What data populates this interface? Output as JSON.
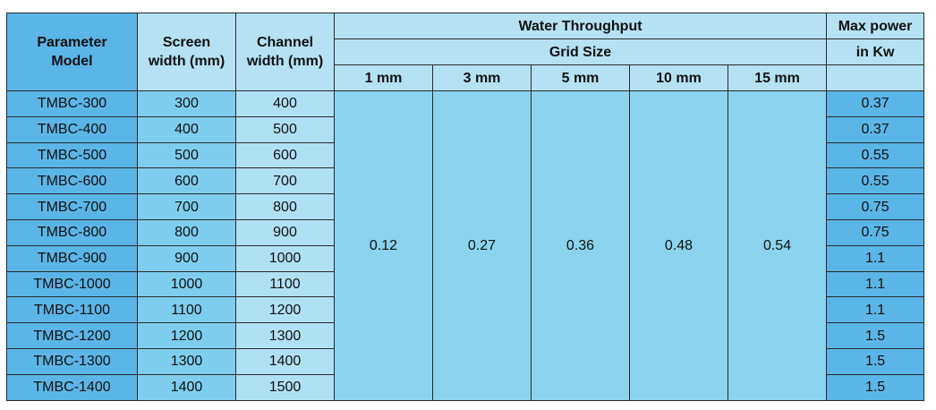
{
  "table": {
    "headers": {
      "model": "Parameter\nModel",
      "screen": "Screen\nwidth (mm)",
      "channel": "Channel\nwidth (mm)",
      "throughput": "Water Throughput",
      "grid": "Grid Size",
      "grid_sizes": [
        "1 mm",
        "3 mm",
        "5 mm",
        "10 mm",
        "15 mm"
      ],
      "power": "Max power",
      "power_unit": "in Kw"
    },
    "throughput_values": [
      0.12,
      0.27,
      0.36,
      0.48,
      0.54
    ],
    "rows": [
      [
        "TMBC-300",
        300,
        400,
        0.37
      ],
      [
        "TMBC-400",
        400,
        500,
        0.37
      ],
      [
        "TMBC-500",
        500,
        600,
        0.55
      ],
      [
        "TMBC-600",
        600,
        700,
        0.55
      ],
      [
        "TMBC-700",
        700,
        800,
        0.75
      ],
      [
        "TMBC-800",
        800,
        900,
        0.75
      ],
      [
        "TMBC-900",
        900,
        1000,
        1.1
      ],
      [
        "TMBC-1000",
        1000,
        1100,
        1.1
      ],
      [
        "TMBC-1100",
        1100,
        1200,
        1.1
      ],
      [
        "TMBC-1200",
        1200,
        1300,
        1.5
      ],
      [
        "TMBC-1300",
        1300,
        1400,
        1.5
      ],
      [
        "TMBC-1400",
        1400,
        1500,
        1.5
      ]
    ]
  }
}
